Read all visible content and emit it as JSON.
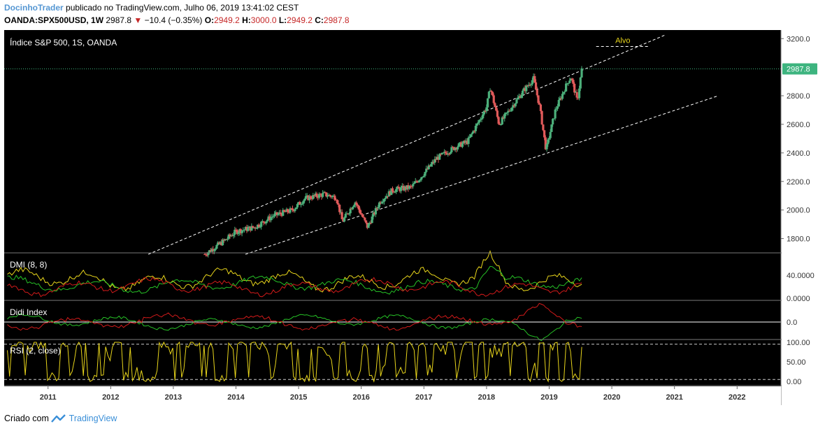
{
  "header": {
    "author": "DocinhoTrader",
    "published": "publicado no TradingView.com, Julho 06, 2019 13:41:02 CEST",
    "symbol": "OANDA:SPX500USD, 1W",
    "last": "2987.8",
    "change": "−10.4 (−0.35%)",
    "o_label": "O:",
    "o": "2949.2",
    "h_label": "H:",
    "h": "3000.0",
    "l_label": "L:",
    "l": "2949.2",
    "c_label": "C:",
    "c": "2987.8"
  },
  "footer": {
    "prefix": "Criado com",
    "brand": "TradingView"
  },
  "colors": {
    "background": "#000000",
    "up": "#4caf7a",
    "down": "#e05a5a",
    "price_tag": "#3db47f",
    "dmi_plus": "#26c126",
    "dmi_minus": "#d11a1a",
    "adx": "#e8d51b",
    "rsi": "#e8d51b",
    "channel": "#ffffff",
    "target": "#e8d51b"
  },
  "chart_data": [
    {
      "type": "candlestick",
      "title": "Índice S&P 500, 1S, OANDA",
      "ylim": [
        1700,
        3260
      ],
      "yticks": [
        "3200.0",
        "2800.0",
        "2600.0",
        "2400.0",
        "2200.0",
        "2000.0",
        "1800.0"
      ],
      "ytick_values": [
        3200,
        2800,
        2600,
        2400,
        2200,
        2000,
        1800
      ],
      "x_ticks": [
        "2011",
        "2012",
        "2013",
        "2014",
        "2015",
        "2016",
        "2017",
        "2018",
        "2019",
        "2020",
        "2021",
        "2022"
      ],
      "xlim": [
        2010.3,
        2022.7
      ],
      "last_price": "2987.8",
      "last_price_value": 2987.8,
      "target_label": "Alvo",
      "target_value": 3145,
      "target_x": [
        2019.75,
        2020.6
      ],
      "channel_upper": [
        [
          2012.6,
          1690
        ],
        [
          2020.85,
          3225
        ]
      ],
      "channel_lower": [
        [
          2014.15,
          1690
        ],
        [
          2021.7,
          2800
        ]
      ],
      "price_path": [
        [
          2013.5,
          1690
        ],
        [
          2013.8,
          1780
        ],
        [
          2014.0,
          1850
        ],
        [
          2014.3,
          1880
        ],
        [
          2014.6,
          1960
        ],
        [
          2014.9,
          2000
        ],
        [
          2015.1,
          2080
        ],
        [
          2015.4,
          2110
        ],
        [
          2015.6,
          2090
        ],
        [
          2015.7,
          1920
        ],
        [
          2015.9,
          2060
        ],
        [
          2016.1,
          1880
        ],
        [
          2016.3,
          2060
        ],
        [
          2016.5,
          2140
        ],
        [
          2016.8,
          2160
        ],
        [
          2016.95,
          2230
        ],
        [
          2017.2,
          2360
        ],
        [
          2017.5,
          2440
        ],
        [
          2017.7,
          2480
        ],
        [
          2018.0,
          2720
        ],
        [
          2018.06,
          2860
        ],
        [
          2018.2,
          2600
        ],
        [
          2018.4,
          2720
        ],
        [
          2018.6,
          2840
        ],
        [
          2018.75,
          2920
        ],
        [
          2018.85,
          2720
        ],
        [
          2018.95,
          2420
        ],
        [
          2019.1,
          2700
        ],
        [
          2019.3,
          2900
        ],
        [
          2019.35,
          2930
        ],
        [
          2019.45,
          2760
        ],
        [
          2019.52,
          2987.8
        ]
      ]
    },
    {
      "type": "line",
      "title": "DMI (8, 8)",
      "yticks": [
        "40.0000",
        "0.0000"
      ],
      "ytick_values": [
        40,
        0
      ],
      "ylim": [
        0,
        75
      ],
      "series": [
        {
          "color": "adx"
        },
        {
          "color": "dmi_plus"
        },
        {
          "color": "dmi_minus"
        }
      ]
    },
    {
      "type": "line",
      "title": "Didi Index",
      "yticks": [
        "0.0"
      ],
      "ytick_values": [
        0
      ],
      "series": [
        {
          "color": "dmi_plus"
        },
        {
          "color": "dmi_minus"
        }
      ]
    },
    {
      "type": "line",
      "title": "RSI (2, close)",
      "yticks": [
        "100.00",
        "50.00",
        "0.00"
      ],
      "ytick_values": [
        100,
        50,
        0
      ],
      "ylim": [
        0,
        100
      ],
      "bands": [
        95,
        5
      ],
      "series": [
        {
          "color": "rsi"
        }
      ]
    }
  ]
}
